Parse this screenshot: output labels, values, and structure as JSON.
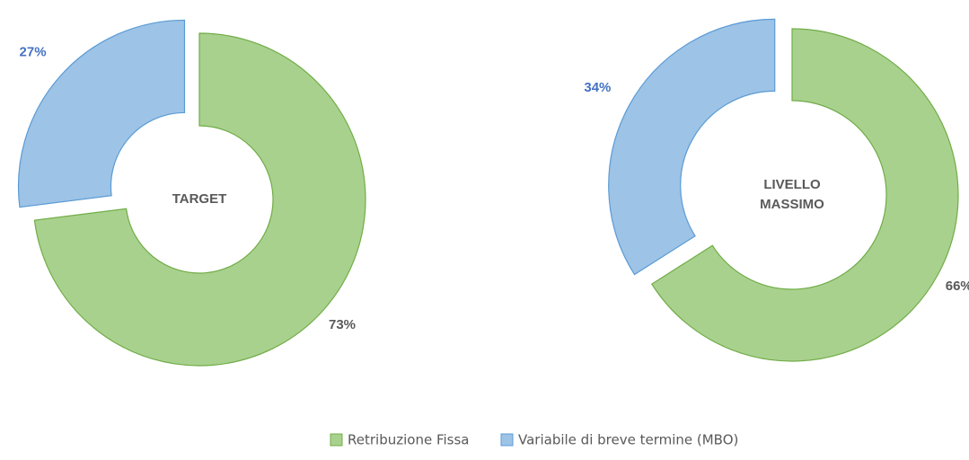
{
  "chart_data": [
    {
      "type": "donut",
      "title": "TARGET",
      "categories": [
        "Retribuzione Fissa",
        "Variabile di breve termine (MBO)"
      ],
      "values": [
        73,
        27
      ],
      "value_labels": [
        "73%",
        "27%"
      ],
      "colors": [
        "#a9d18e",
        "#9dc3e6"
      ]
    },
    {
      "type": "donut",
      "title": "LIVELLO MASSIMO",
      "categories": [
        "Retribuzione Fissa",
        "Variabile di breve termine (MBO)"
      ],
      "values": [
        66,
        34
      ],
      "value_labels": [
        "66%",
        "34%"
      ],
      "colors": [
        "#a9d18e",
        "#9dc3e6"
      ]
    }
  ]
}
